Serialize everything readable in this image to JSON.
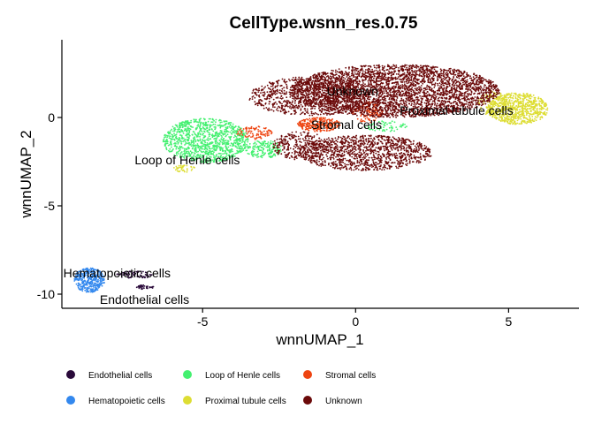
{
  "chart_data": {
    "type": "scatter",
    "title": "CellType.wsnn_res.0.75",
    "xlabel": "wnnUMAP_1",
    "ylabel": "wnnUMAP_2",
    "xlim": [
      -9.6,
      7.3
    ],
    "ylim": [
      -10.8,
      4.4
    ],
    "x_ticks": [
      -5,
      0,
      5
    ],
    "y_ticks": [
      -10,
      -5,
      0
    ],
    "grid": false,
    "legend_position": "bottom",
    "series": [
      {
        "name": "Endothelial cells",
        "color": "#2a0a3a",
        "clusters": [
          {
            "cx": -7.2,
            "cy": -8.9,
            "rx": 0.6,
            "ry": 0.22,
            "n": 70
          },
          {
            "cx": -6.9,
            "cy": -9.6,
            "rx": 0.3,
            "ry": 0.12,
            "n": 40
          }
        ]
      },
      {
        "name": "Hematopoietic cells",
        "color": "#3388ee",
        "clusters": [
          {
            "cx": -8.7,
            "cy": -9.2,
            "rx": 0.5,
            "ry": 0.7,
            "n": 380
          }
        ]
      },
      {
        "name": "Loop of Henle cells",
        "color": "#44f070",
        "clusters": [
          {
            "cx": -4.9,
            "cy": -1.3,
            "rx": 1.4,
            "ry": 1.25,
            "n": 1100
          },
          {
            "cx": -3.0,
            "cy": -1.8,
            "rx": 0.6,
            "ry": 0.5,
            "n": 180
          },
          {
            "cx": 1.0,
            "cy": -0.5,
            "rx": 0.7,
            "ry": 0.3,
            "n": 60
          }
        ]
      },
      {
        "name": "Proximal tubule cells",
        "color": "#dddd33",
        "clusters": [
          {
            "cx": 5.3,
            "cy": 0.5,
            "rx": 1.0,
            "ry": 0.9,
            "n": 700
          },
          {
            "cx": 4.5,
            "cy": 0.8,
            "rx": 0.5,
            "ry": 0.7,
            "n": 150
          },
          {
            "cx": -5.6,
            "cy": -2.9,
            "rx": 0.35,
            "ry": 0.2,
            "n": 40
          }
        ]
      },
      {
        "name": "Stromal cells",
        "color": "#ee4411",
        "clusters": [
          {
            "cx": -1.2,
            "cy": -0.4,
            "rx": 0.7,
            "ry": 0.4,
            "n": 260
          },
          {
            "cx": 0.4,
            "cy": 0.3,
            "rx": 0.5,
            "ry": 0.6,
            "n": 120
          },
          {
            "cx": -3.3,
            "cy": -0.9,
            "rx": 0.6,
            "ry": 0.4,
            "n": 90
          }
        ]
      },
      {
        "name": "Unknown",
        "color": "#6b0a0a",
        "clusters": [
          {
            "cx": 1.3,
            "cy": 1.5,
            "rx": 3.4,
            "ry": 1.5,
            "n": 3600
          },
          {
            "cx": -1.5,
            "cy": 1.2,
            "rx": 2.0,
            "ry": 1.1,
            "n": 900
          },
          {
            "cx": 0.3,
            "cy": -2.0,
            "rx": 2.2,
            "ry": 1.0,
            "n": 1200
          },
          {
            "cx": -1.8,
            "cy": -1.6,
            "rx": 0.9,
            "ry": 0.8,
            "n": 300
          }
        ]
      }
    ],
    "annotations": [
      {
        "text": "Unknown",
        "x": -0.1,
        "y": 1.5
      },
      {
        "text": "Proximal tubule cells",
        "x": 3.3,
        "y": 0.4
      },
      {
        "text": "Stromal cells",
        "x": -0.3,
        "y": -0.4
      },
      {
        "text": "Loop of Henle cells",
        "x": -5.5,
        "y": -2.4
      },
      {
        "text": "Hematopoietic cells",
        "x": -7.8,
        "y": -8.8
      },
      {
        "text": "Endothelial cells",
        "x": -6.9,
        "y": -10.3
      }
    ]
  }
}
